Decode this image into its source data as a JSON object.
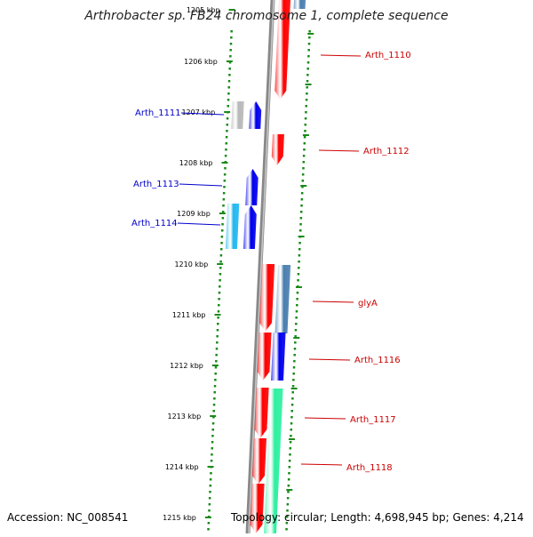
{
  "title": "Arthrobacter sp. FB24 chromosome 1, complete sequence",
  "accession": "Accession: NC_008541",
  "topology": "Topology: circular; Length: 4,698,945 bp; Genes: 4,214",
  "colors": {
    "forward_gene": "#ff0000",
    "reverse_gene": "#0000ee",
    "light_blue_gene": "#22b8f0",
    "grey_gene": "#b8b8b8",
    "steel_blue_gene": "#4a7fb0",
    "green_gene": "#2ef0a0",
    "backbone": "#888888",
    "ticks": "#1a8a1a",
    "label_forward": "#cc0000",
    "label_reverse": "#0000cc"
  },
  "axis": {
    "unit": "kbp",
    "ticks": [
      "1205 kbp",
      "1206 kbp",
      "1207 kbp",
      "1208 kbp",
      "1209 kbp",
      "1210 kbp",
      "1211 kbp",
      "1212 kbp",
      "1213 kbp",
      "1214 kbp",
      "1215 kbp"
    ]
  },
  "gene_labels": [
    {
      "name": "Arth_1110",
      "strand": "forward"
    },
    {
      "name": "Arth_1111",
      "strand": "reverse"
    },
    {
      "name": "Arth_1112",
      "strand": "forward"
    },
    {
      "name": "Arth_1113",
      "strand": "reverse"
    },
    {
      "name": "Arth_1114",
      "strand": "reverse"
    },
    {
      "name": "glyA",
      "strand": "forward"
    },
    {
      "name": "Arth_1116",
      "strand": "forward"
    },
    {
      "name": "Arth_1117",
      "strand": "forward"
    },
    {
      "name": "Arth_1118",
      "strand": "forward"
    }
  ]
}
